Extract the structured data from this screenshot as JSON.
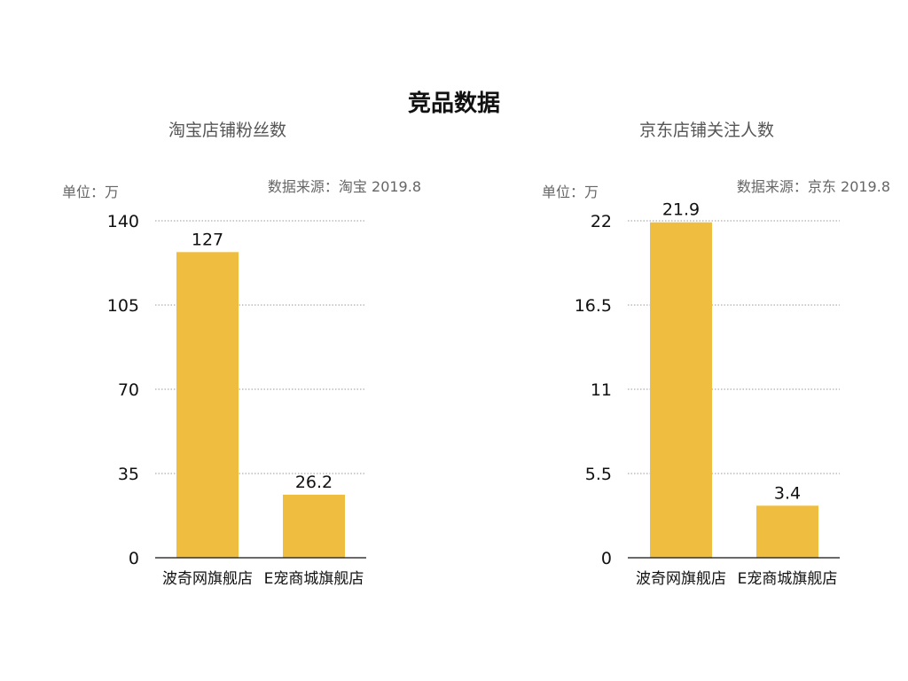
{
  "page": {
    "title": "竞品数据"
  },
  "chart_data": [
    {
      "type": "bar",
      "subtitle": "淘宝店铺粉丝数",
      "unit_label": "单位：万",
      "source": "数据来源：淘宝 2019.8",
      "categories": [
        "波奇网旗舰店",
        "E宠商城旗舰店"
      ],
      "values": [
        127,
        26.2
      ],
      "value_labels": [
        "127",
        "26.2"
      ],
      "yticks": [
        "0",
        "35",
        "70",
        "105",
        "140"
      ],
      "ylim": [
        0,
        140
      ],
      "grid": true,
      "color": "#EFBE40"
    },
    {
      "type": "bar",
      "subtitle": "京东店铺关注人数",
      "unit_label": "单位：万",
      "source": "数据来源：京东 2019.8",
      "categories": [
        "波奇网旗舰店",
        "E宠商城旗舰店"
      ],
      "values": [
        21.9,
        3.4
      ],
      "value_labels": [
        "21.9",
        "3.4"
      ],
      "yticks": [
        "0",
        "5.5",
        "11",
        "16.5",
        "22"
      ],
      "ylim": [
        0,
        22
      ],
      "grid": true,
      "color": "#EFBE40"
    }
  ]
}
